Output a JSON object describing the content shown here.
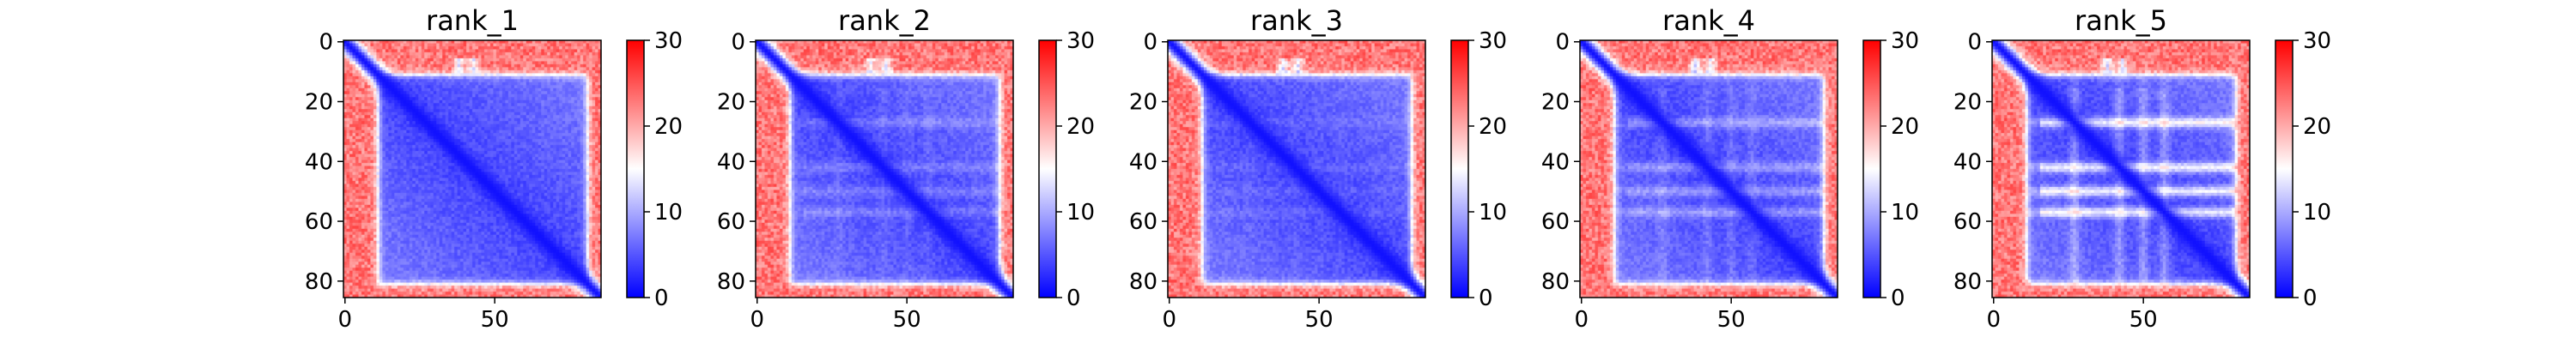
{
  "chart_data": {
    "type": "heatmap",
    "n_residues": 86,
    "colorscale": {
      "low": "#0000ff",
      "mid": "#ffffff",
      "high": "#ff0000"
    },
    "value_range": [
      0,
      30
    ],
    "x_ticks": [
      0,
      50
    ],
    "x_tick_labels": [
      "0",
      "50"
    ],
    "y_ticks": [
      0,
      20,
      40,
      60,
      80
    ],
    "y_tick_labels": [
      "0",
      "20",
      "40",
      "60",
      "80"
    ],
    "colorbar_ticks": [
      0,
      10,
      20,
      30
    ],
    "colorbar_tick_labels": [
      "0",
      "10",
      "20",
      "30"
    ],
    "panels": [
      {
        "title": "rank_1",
        "band_strength": 0.0
      },
      {
        "title": "rank_2",
        "band_strength": 0.25
      },
      {
        "title": "rank_3",
        "band_strength": 0.1
      },
      {
        "title": "rank_4",
        "band_strength": 0.45
      },
      {
        "title": "rank_5",
        "band_strength": 1.0
      }
    ],
    "core_start": 11,
    "core_end": 81,
    "bands": [
      27,
      42,
      50,
      57
    ],
    "bumps": [
      38,
      43
    ]
  }
}
